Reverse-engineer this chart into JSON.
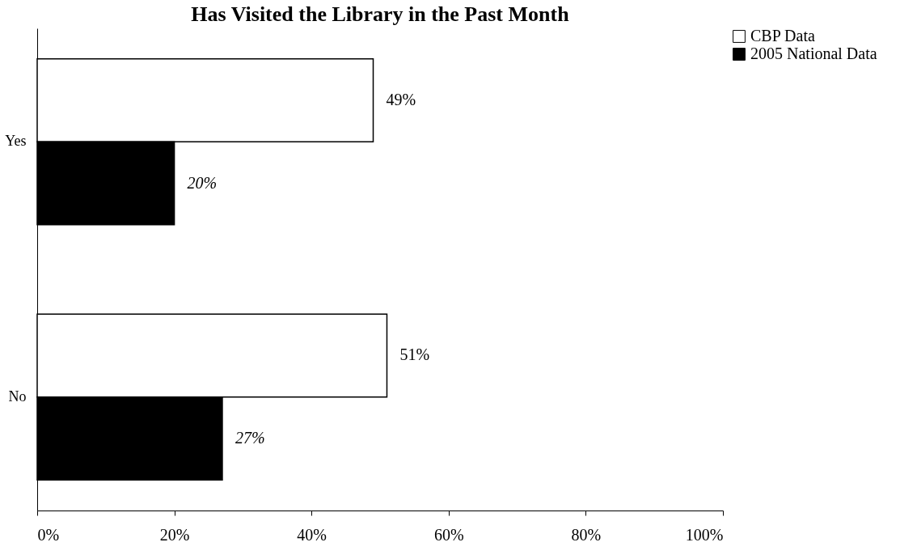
{
  "chart_data": {
    "type": "bar",
    "orientation": "horizontal",
    "title": "Has Visited the Library in the Past Month",
    "categories": [
      "Yes",
      "No"
    ],
    "series": [
      {
        "name": "CBP Data",
        "color": "#ffffff",
        "values": [
          49,
          51
        ],
        "value_labels": [
          "49%",
          "51%"
        ]
      },
      {
        "name": "2005 National Data",
        "color": "#000000",
        "values": [
          20,
          27
        ],
        "value_labels": [
          "20%",
          "27%"
        ]
      }
    ],
    "xlim": [
      0,
      100
    ],
    "xticks": [
      {
        "value": 0,
        "label": "0%"
      },
      {
        "value": 20,
        "label": "20%"
      },
      {
        "value": 40,
        "label": "40%"
      },
      {
        "value": 60,
        "label": "60%"
      },
      {
        "value": 80,
        "label": "80%"
      },
      {
        "value": 100,
        "label": "100%"
      }
    ],
    "grid": false,
    "legend": "right"
  }
}
